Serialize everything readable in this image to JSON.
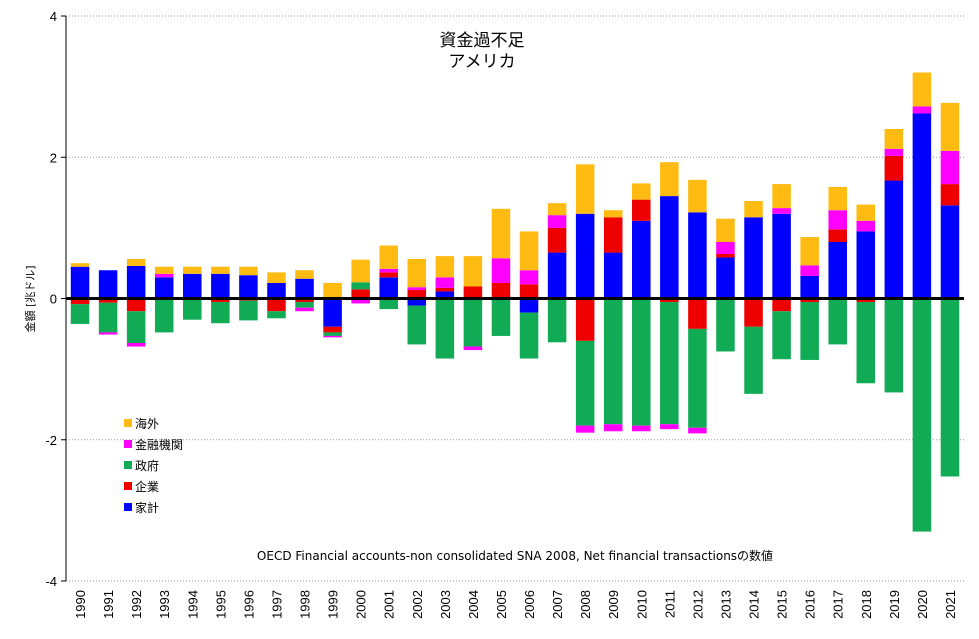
{
  "chart_data": {
    "type": "bar",
    "stacked": true,
    "title_lines": [
      "資金過不足",
      "アメリカ"
    ],
    "ylabel": "金額 [兆ドル]",
    "xlabel": "",
    "ylim": [
      -4,
      4
    ],
    "yticks": [
      4,
      2,
      0,
      -2,
      -4
    ],
    "yticklabels": [
      "4",
      "2",
      "0",
      "-2",
      "-4"
    ],
    "grid": "horizontal dotted",
    "legend_position": "left-lower",
    "note": "OECD Financial accounts-non consolidated SNA 2008, Net financial transactionsの数値",
    "categories": [
      "1990",
      "1991",
      "1992",
      "1993",
      "1994",
      "1995",
      "1996",
      "1997",
      "1998",
      "1999",
      "2000",
      "2001",
      "2002",
      "2003",
      "2004",
      "2005",
      "2006",
      "2007",
      "2008",
      "2009",
      "2010",
      "2011",
      "2012",
      "2013",
      "2014",
      "2015",
      "2016",
      "2017",
      "2018",
      "2019",
      "2020",
      "2021"
    ],
    "series": [
      {
        "name": "家計",
        "color": "#0000ff",
        "values": [
          0.45,
          0.4,
          0.46,
          0.3,
          0.35,
          0.35,
          0.33,
          0.22,
          0.28,
          -0.4,
          0.0,
          0.3,
          -0.1,
          0.1,
          0.0,
          0.0,
          -0.2,
          0.65,
          1.2,
          0.65,
          1.1,
          1.45,
          1.22,
          0.58,
          1.15,
          1.2,
          0.32,
          0.8,
          0.95,
          1.67,
          2.62,
          1.32
        ]
      },
      {
        "name": "企業",
        "color": "#ee0000",
        "values": [
          -0.08,
          -0.06,
          -0.18,
          0.0,
          0.0,
          -0.05,
          -0.03,
          -0.18,
          -0.05,
          -0.08,
          0.13,
          0.07,
          0.12,
          0.05,
          0.17,
          0.22,
          0.2,
          0.35,
          -0.6,
          0.5,
          0.3,
          -0.05,
          -0.43,
          0.05,
          -0.4,
          -0.18,
          -0.05,
          0.18,
          -0.05,
          0.35,
          0.0,
          0.3
        ]
      },
      {
        "name": "政府",
        "color": "#11aa55",
        "values": [
          -0.28,
          -0.42,
          -0.45,
          -0.48,
          -0.3,
          -0.3,
          -0.28,
          -0.1,
          -0.08,
          -0.05,
          0.1,
          -0.15,
          -0.55,
          -0.85,
          -0.68,
          -0.53,
          -0.65,
          -0.62,
          -1.2,
          -1.78,
          -1.8,
          -1.73,
          -1.4,
          -0.75,
          -0.95,
          -0.68,
          -0.82,
          -0.65,
          -1.15,
          -1.33,
          -3.3,
          -2.52
        ]
      },
      {
        "name": "金融機関",
        "color": "#ff00ff",
        "values": [
          0.0,
          -0.03,
          -0.05,
          0.05,
          0.0,
          0.0,
          0.0,
          0.0,
          -0.05,
          -0.02,
          -0.07,
          0.05,
          0.04,
          0.15,
          -0.05,
          0.35,
          0.2,
          0.18,
          -0.1,
          -0.1,
          -0.08,
          -0.07,
          -0.08,
          0.17,
          0.0,
          0.08,
          0.15,
          0.27,
          0.15,
          0.1,
          0.1,
          0.47
        ]
      },
      {
        "name": "海外",
        "color": "#ffbb11",
        "values": [
          0.05,
          0.0,
          0.1,
          0.1,
          0.1,
          0.1,
          0.12,
          0.15,
          0.12,
          0.22,
          0.32,
          0.33,
          0.4,
          0.3,
          0.43,
          0.7,
          0.55,
          0.17,
          0.7,
          0.1,
          0.23,
          0.48,
          0.46,
          0.33,
          0.23,
          0.34,
          0.4,
          0.33,
          0.23,
          0.28,
          0.48,
          0.68
        ]
      }
    ],
    "legend_order": [
      "海外",
      "金融機関",
      "政府",
      "企業",
      "家計"
    ]
  }
}
